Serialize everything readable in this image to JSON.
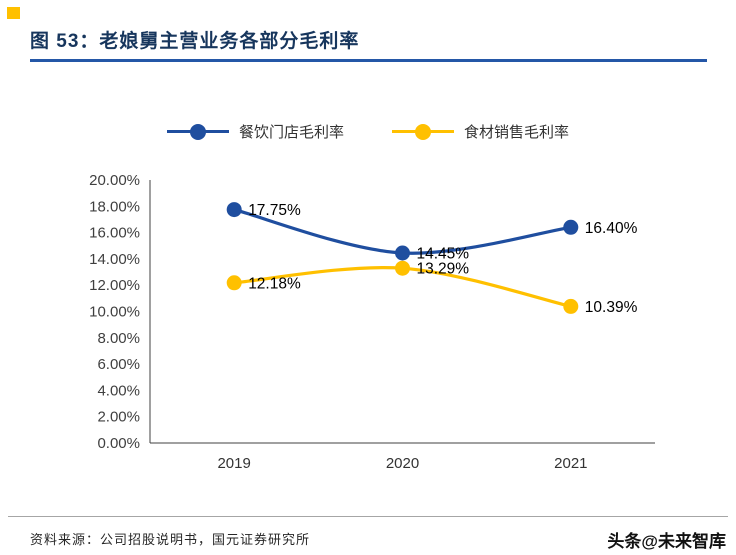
{
  "header": {
    "title": "图 53：老娘舅主营业务各部分毛利率"
  },
  "chart_data": {
    "type": "line",
    "title": "老娘舅主营业务各部分毛利率",
    "categories": [
      "2019",
      "2020",
      "2021"
    ],
    "series": [
      {
        "name": "餐饮门店毛利率",
        "color": "#1F4E9F",
        "values": [
          17.75,
          14.45,
          16.4
        ],
        "labels": [
          "17.75%",
          "14.45%",
          "16.40%"
        ]
      },
      {
        "name": "食材销售毛利率",
        "color": "#FFC000",
        "values": [
          12.18,
          13.29,
          10.39
        ],
        "labels": [
          "12.18%",
          "13.29%",
          "10.39%"
        ]
      }
    ],
    "ylim": [
      0,
      20
    ],
    "ytick_step": 2,
    "ytick_suffix": "%",
    "grid": false,
    "legend_position": "top",
    "marker": "circle",
    "line_style": "smooth"
  },
  "footer": {
    "source": "资料来源：公司招股说明书，国元证券研究所",
    "watermark": "头条@未来智库"
  },
  "colors": {
    "title": "#17365D",
    "underline": "#2457A7",
    "accent_square": "#FFC000",
    "axis": "#404040",
    "data_label": "#000000"
  }
}
